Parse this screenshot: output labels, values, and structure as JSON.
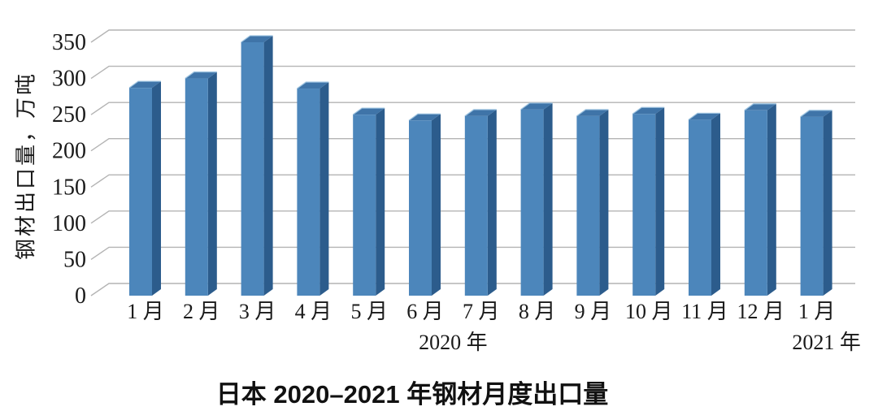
{
  "chart_data": {
    "type": "bar",
    "style": "3d-column",
    "title": "日本 2020–2021 年钢材月度出口量",
    "ylabel": "钢材出口量，万吨",
    "xlabel": "",
    "categories": [
      "1 月",
      "2 月",
      "3 月",
      "4 月",
      "5 月",
      "6 月",
      "7 月",
      "8 月",
      "9 月",
      "10 月",
      "11 月",
      "12 月",
      "1 月"
    ],
    "values": [
      287,
      300,
      350,
      286,
      250,
      242,
      248,
      257,
      248,
      251,
      243,
      256,
      247
    ],
    "year_labels": [
      {
        "text": "2020 年",
        "span": [
          0,
          11
        ]
      },
      {
        "text": "2021 年",
        "span": [
          12,
          12
        ]
      }
    ],
    "yticks": [
      0,
      50,
      100,
      150,
      200,
      250,
      300,
      350
    ],
    "ylim": [
      0,
      350
    ],
    "grid": true,
    "legend": "none",
    "colors": {
      "bar_front": "#4c86bb",
      "bar_side": "#2c5c8c",
      "bar_top": "#3f74a8",
      "bar_highlight": "#9cc3e0",
      "gridline": "#b4b4b4",
      "axis_connector": "#a3a3a3",
      "text": "#1a1a1a"
    }
  }
}
